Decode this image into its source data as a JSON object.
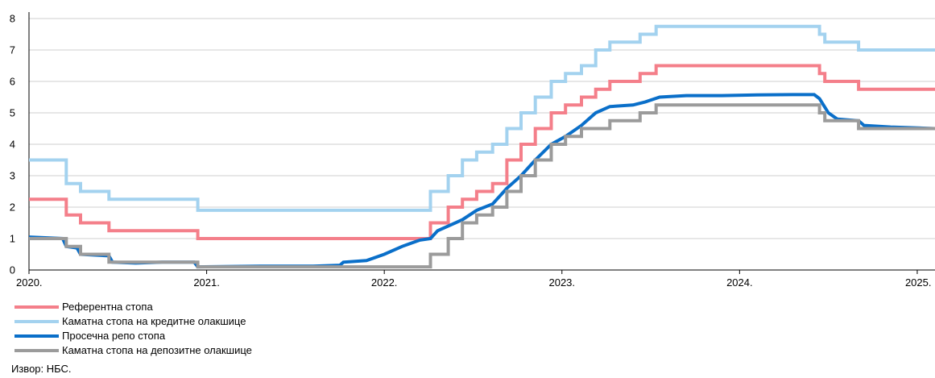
{
  "chart_data": {
    "type": "line",
    "title": "",
    "ylabel": "",
    "xlabel": "",
    "ylim": [
      0,
      8
    ],
    "y_ticks": [
      "0",
      "1",
      "2",
      "3",
      "4",
      "5",
      "6",
      "7",
      "8"
    ],
    "xlim": [
      2020.0,
      2025.1
    ],
    "x_ticks": [
      {
        "x": 2020,
        "label": "2020."
      },
      {
        "x": 2021,
        "label": "2021."
      },
      {
        "x": 2022,
        "label": "2022."
      },
      {
        "x": 2023,
        "label": "2023."
      },
      {
        "x": 2024,
        "label": "2024."
      },
      {
        "x": 2025,
        "label": "2025."
      }
    ],
    "grid": "horizontal",
    "legend_position": "bottom-left",
    "series": [
      {
        "name": "Референтна стопа",
        "color": "#f47f8a",
        "step": true,
        "points": [
          [
            2020.0,
            2.25
          ],
          [
            2020.21,
            1.75
          ],
          [
            2020.29,
            1.5
          ],
          [
            2020.45,
            1.25
          ],
          [
            2020.95,
            1.0
          ],
          [
            2022.26,
            1.5
          ],
          [
            2022.36,
            2.0
          ],
          [
            2022.44,
            2.25
          ],
          [
            2022.52,
            2.5
          ],
          [
            2022.61,
            2.75
          ],
          [
            2022.69,
            3.5
          ],
          [
            2022.77,
            4.0
          ],
          [
            2022.85,
            4.5
          ],
          [
            2022.94,
            5.0
          ],
          [
            2023.02,
            5.25
          ],
          [
            2023.11,
            5.5
          ],
          [
            2023.19,
            5.75
          ],
          [
            2023.27,
            6.0
          ],
          [
            2023.44,
            6.25
          ],
          [
            2023.53,
            6.5
          ],
          [
            2024.45,
            6.25
          ],
          [
            2024.48,
            6.0
          ],
          [
            2024.67,
            5.75
          ],
          [
            2025.1,
            5.75
          ]
        ]
      },
      {
        "name": "Каматна стопа на кредитне олакшице",
        "color": "#a3d2ef",
        "step": true,
        "points": [
          [
            2020.0,
            3.5
          ],
          [
            2020.21,
            2.75
          ],
          [
            2020.29,
            2.5
          ],
          [
            2020.45,
            2.25
          ],
          [
            2020.95,
            1.9
          ],
          [
            2022.26,
            2.5
          ],
          [
            2022.36,
            3.0
          ],
          [
            2022.44,
            3.5
          ],
          [
            2022.52,
            3.75
          ],
          [
            2022.61,
            4.0
          ],
          [
            2022.69,
            4.5
          ],
          [
            2022.77,
            5.0
          ],
          [
            2022.85,
            5.5
          ],
          [
            2022.94,
            6.0
          ],
          [
            2023.02,
            6.25
          ],
          [
            2023.11,
            6.5
          ],
          [
            2023.19,
            7.0
          ],
          [
            2023.27,
            7.25
          ],
          [
            2023.44,
            7.5
          ],
          [
            2023.53,
            7.75
          ],
          [
            2024.45,
            7.5
          ],
          [
            2024.48,
            7.25
          ],
          [
            2024.67,
            7.0
          ],
          [
            2025.1,
            7.0
          ]
        ]
      },
      {
        "name": "Просечна репо стопа",
        "color": "#0a6fc9",
        "step": false,
        "points": [
          [
            2020.0,
            1.05
          ],
          [
            2020.19,
            1.0
          ],
          [
            2020.21,
            0.75
          ],
          [
            2020.27,
            0.7
          ],
          [
            2020.29,
            0.5
          ],
          [
            2020.45,
            0.45
          ],
          [
            2020.47,
            0.25
          ],
          [
            2020.6,
            0.22
          ],
          [
            2020.75,
            0.25
          ],
          [
            2020.93,
            0.25
          ],
          [
            2020.95,
            0.1
          ],
          [
            2021.3,
            0.12
          ],
          [
            2021.6,
            0.12
          ],
          [
            2021.75,
            0.15
          ],
          [
            2021.77,
            0.25
          ],
          [
            2021.9,
            0.3
          ],
          [
            2022.0,
            0.5
          ],
          [
            2022.1,
            0.75
          ],
          [
            2022.2,
            0.95
          ],
          [
            2022.26,
            1.0
          ],
          [
            2022.3,
            1.25
          ],
          [
            2022.36,
            1.4
          ],
          [
            2022.44,
            1.6
          ],
          [
            2022.52,
            1.9
          ],
          [
            2022.61,
            2.1
          ],
          [
            2022.69,
            2.6
          ],
          [
            2022.77,
            3.0
          ],
          [
            2022.85,
            3.5
          ],
          [
            2022.94,
            4.0
          ],
          [
            2023.02,
            4.25
          ],
          [
            2023.11,
            4.6
          ],
          [
            2023.19,
            5.0
          ],
          [
            2023.27,
            5.2
          ],
          [
            2023.4,
            5.25
          ],
          [
            2023.47,
            5.35
          ],
          [
            2023.55,
            5.5
          ],
          [
            2023.7,
            5.55
          ],
          [
            2023.9,
            5.55
          ],
          [
            2024.1,
            5.57
          ],
          [
            2024.3,
            5.58
          ],
          [
            2024.42,
            5.58
          ],
          [
            2024.45,
            5.45
          ],
          [
            2024.5,
            5.0
          ],
          [
            2024.55,
            4.8
          ],
          [
            2024.67,
            4.75
          ],
          [
            2024.7,
            4.6
          ],
          [
            2024.85,
            4.55
          ],
          [
            2025.1,
            4.5
          ]
        ]
      },
      {
        "name": "Каматна стопа на депозитне олакшице",
        "color": "#9b9b9b",
        "step": true,
        "points": [
          [
            2020.0,
            1.0
          ],
          [
            2020.21,
            0.75
          ],
          [
            2020.29,
            0.5
          ],
          [
            2020.45,
            0.25
          ],
          [
            2020.95,
            0.1
          ],
          [
            2022.26,
            0.5
          ],
          [
            2022.36,
            1.0
          ],
          [
            2022.44,
            1.5
          ],
          [
            2022.52,
            1.75
          ],
          [
            2022.61,
            2.0
          ],
          [
            2022.69,
            2.5
          ],
          [
            2022.77,
            3.0
          ],
          [
            2022.85,
            3.5
          ],
          [
            2022.94,
            4.0
          ],
          [
            2023.02,
            4.25
          ],
          [
            2023.11,
            4.5
          ],
          [
            2023.27,
            4.75
          ],
          [
            2023.44,
            5.0
          ],
          [
            2023.53,
            5.25
          ],
          [
            2024.45,
            5.0
          ],
          [
            2024.48,
            4.75
          ],
          [
            2024.67,
            4.5
          ],
          [
            2025.1,
            4.5
          ]
        ]
      }
    ]
  },
  "source": "Извор: НБС."
}
